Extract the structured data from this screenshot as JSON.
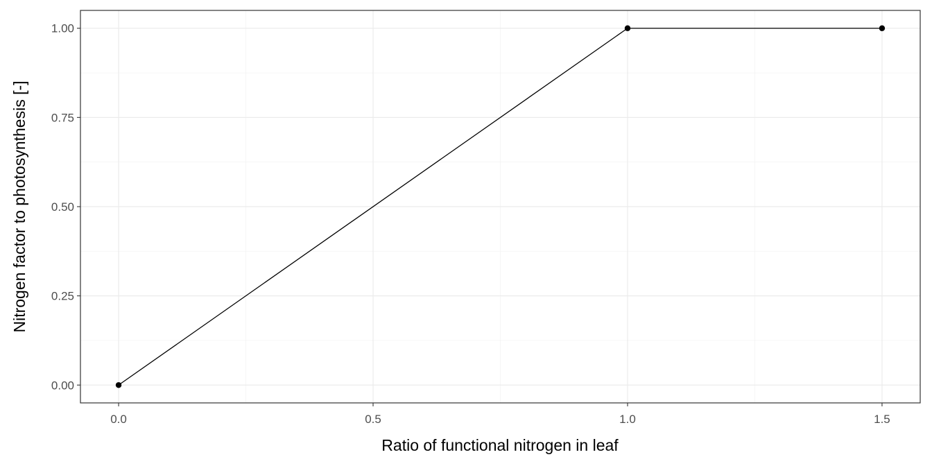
{
  "chart_data": {
    "type": "line",
    "title": "",
    "xlabel": "Ratio of functional nitrogen in leaf",
    "ylabel": "Nitrogen factor to photosynthesis [-]",
    "xlim": [
      -0.075,
      1.575
    ],
    "ylim": [
      -0.05,
      1.05
    ],
    "x_ticks": [
      0.0,
      0.5,
      1.0,
      1.5
    ],
    "x_tick_labels": [
      "0.0",
      "0.5",
      "1.0",
      "1.5"
    ],
    "y_ticks": [
      0.0,
      0.25,
      0.5,
      0.75,
      1.0
    ],
    "y_tick_labels": [
      "0.00",
      "0.25",
      "0.50",
      "0.75",
      "1.00"
    ],
    "grid": true,
    "legend": "none",
    "series": [
      {
        "x": [
          0.0,
          1.0,
          1.5
        ],
        "y": [
          0.0,
          1.0,
          1.0
        ],
        "color": "#000000",
        "markers": true
      }
    ]
  }
}
